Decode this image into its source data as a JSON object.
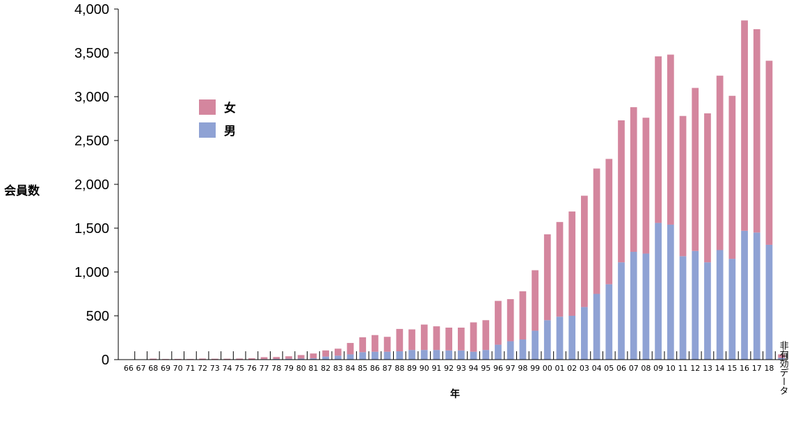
{
  "chart_data": {
    "type": "bar",
    "stacked": true,
    "ylabel": "会員数",
    "xlabel": "年",
    "ylim": [
      0,
      4000
    ],
    "yticks": [
      "0",
      "500",
      "1,000",
      "1,500",
      "2,000",
      "2,500",
      "3,000",
      "3,500",
      "4,000"
    ],
    "legend_position": "left",
    "categories": [
      "66",
      "67",
      "68",
      "69",
      "70",
      "71",
      "72",
      "73",
      "74",
      "75",
      "76",
      "77",
      "78",
      "79",
      "80",
      "81",
      "82",
      "83",
      "84",
      "85",
      "86",
      "87",
      "88",
      "89",
      "90",
      "91",
      "92",
      "93",
      "94",
      "95",
      "96",
      "97",
      "98",
      "99",
      "00",
      "01",
      "02",
      "03",
      "04",
      "05",
      "06",
      "07",
      "08",
      "09",
      "10",
      "11",
      "12",
      "13",
      "14",
      "15",
      "16",
      "17",
      "18",
      "非有効データ"
    ],
    "series": [
      {
        "name": "男",
        "color": "#8fa2d4",
        "values": [
          1,
          2,
          3,
          2,
          2,
          2,
          3,
          2,
          3,
          3,
          4,
          6,
          8,
          10,
          12,
          15,
          35,
          45,
          60,
          85,
          90,
          90,
          95,
          110,
          110,
          110,
          105,
          105,
          90,
          110,
          170,
          210,
          230,
          330,
          450,
          490,
          500,
          600,
          750,
          860,
          1110,
          1230,
          1210,
          1560,
          1540,
          1180,
          1240,
          1110,
          1250,
          1150,
          1470,
          1450,
          1310,
          20
        ]
      },
      {
        "name": "女",
        "color": "#d4869e",
        "values": [
          2,
          2,
          8,
          5,
          6,
          5,
          9,
          8,
          7,
          9,
          11,
          22,
          22,
          28,
          40,
          55,
          70,
          80,
          130,
          170,
          190,
          170,
          255,
          235,
          290,
          270,
          260,
          260,
          335,
          340,
          500,
          480,
          550,
          690,
          980,
          1080,
          1190,
          1270,
          1430,
          1430,
          1620,
          1650,
          1550,
          1900,
          1940,
          1600,
          1860,
          1700,
          1990,
          1860,
          2400,
          2320,
          2100,
          40
        ]
      }
    ]
  }
}
